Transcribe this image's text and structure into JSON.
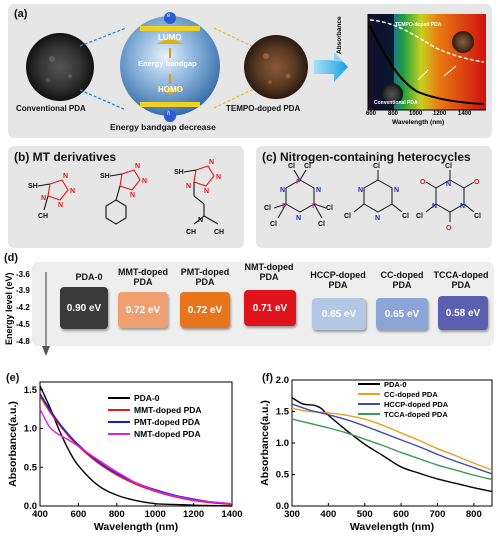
{
  "panel_a": {
    "label": "(a)",
    "conventional": "Conventional PDA",
    "tempo": "TEMPO-doped PDA",
    "lumo": "LUMO",
    "homo": "HOMO",
    "gap": "Energy bandgap",
    "caption": "Energy bandgap decrease",
    "e_sym": "e",
    "h_sym": "h",
    "inset": {
      "ylabel": "Absorbance",
      "xlabel": "Wavelength (nm)",
      "ticks": [
        "600",
        "800",
        "1000",
        "1200",
        "1400"
      ],
      "tempo_label": "TEMPO-doped PDA",
      "conv_label": "Conventional PDA"
    }
  },
  "panel_b": {
    "label": "(b)",
    "title": "MT derivatives"
  },
  "panel_c": {
    "label": "(c)",
    "title": "Nitrogen-containing heterocycles"
  },
  "panel_d": {
    "label": "(d)",
    "ylabel": "Energy level (eV)",
    "yticks": [
      "-3.6",
      "-3.9",
      "-4.2",
      "-4.5",
      "-4.8"
    ],
    "colors": {
      "PDA-0": "#3a3a3a",
      "MMT-doped PDA": "#f0a070",
      "PMT-doped PDA": "#e8741c",
      "NMT-doped PDA": "#e0141c",
      "HCCP-doped PDA": "#b4c8e6",
      "CC-doped PDA": "#8ca4d8",
      "TCCA-doped PDA": "#5a5fb0"
    },
    "bandgaps": [
      {
        "name": "PDA-0",
        "value": "0.90 eV"
      },
      {
        "name": "MMT-doped PDA",
        "value": "0.72 eV"
      },
      {
        "name": "PMT-doped PDA",
        "value": "0.72 eV"
      },
      {
        "name": "NMT-doped PDA",
        "value": "0.71 eV"
      },
      {
        "name": "HCCP-doped PDA",
        "value": "0.65 eV"
      },
      {
        "name": "CC-doped PDA",
        "value": "0.65 eV"
      },
      {
        "name": "TCCA-doped PDA",
        "value": "0.58 eV"
      }
    ]
  },
  "chart_data": [
    {
      "panel": "(e)",
      "type": "line",
      "xlabel": "Wavelength (nm)",
      "ylabel": "Absorbance(a.u.)",
      "xlim": [
        400,
        1400
      ],
      "ylim": [
        0,
        1.6
      ],
      "xticks": [
        400,
        600,
        800,
        1000,
        1200,
        1400
      ],
      "yticks": [
        0.0,
        0.5,
        1.0,
        1.5
      ],
      "legend": "top-right",
      "series": [
        {
          "name": "PDA-0",
          "color": "#000000",
          "x": [
            400,
            450,
            500,
            550,
            600,
            700,
            800,
            900,
            1000,
            1100,
            1200,
            1300,
            1400
          ],
          "y": [
            1.55,
            1.28,
            0.98,
            0.72,
            0.52,
            0.27,
            0.14,
            0.07,
            0.03,
            0.02,
            0.01,
            0.005,
            0.0
          ]
        },
        {
          "name": "MMT-doped PDA",
          "color": "#e41a1c",
          "x": [
            400,
            450,
            500,
            550,
            600,
            700,
            800,
            900,
            1000,
            1100,
            1200,
            1300,
            1400
          ],
          "y": [
            1.42,
            1.22,
            1.05,
            0.9,
            0.77,
            0.56,
            0.4,
            0.28,
            0.19,
            0.12,
            0.07,
            0.04,
            0.02
          ]
        },
        {
          "name": "PMT-doped PDA",
          "color": "#1c1cd8",
          "x": [
            400,
            450,
            500,
            550,
            600,
            700,
            800,
            900,
            1000,
            1100,
            1200,
            1300,
            1400
          ],
          "y": [
            1.45,
            1.25,
            1.07,
            0.92,
            0.79,
            0.58,
            0.42,
            0.3,
            0.21,
            0.14,
            0.09,
            0.05,
            0.03
          ]
        },
        {
          "name": "NMT-doped PDA",
          "color": "#e020e0",
          "x": [
            400,
            450,
            500,
            550,
            600,
            700,
            800,
            900,
            1000,
            1100,
            1200,
            1300,
            1400
          ],
          "y": [
            1.25,
            1.02,
            0.92,
            0.85,
            0.77,
            0.6,
            0.44,
            0.3,
            0.2,
            0.13,
            0.08,
            0.05,
            0.03
          ]
        }
      ]
    },
    {
      "panel": "(f)",
      "type": "line",
      "xlabel": "Wavelength (nm)",
      "ylabel": "Absorbance(a.u.)",
      "xlim": [
        300,
        850
      ],
      "ylim": [
        0,
        2.0
      ],
      "xticks": [
        300,
        400,
        500,
        600,
        700,
        800
      ],
      "yticks": [
        0.0,
        0.5,
        1.0,
        1.5,
        2.0
      ],
      "legend": "top-right",
      "series": [
        {
          "name": "PDA-0",
          "color": "#000000",
          "x": [
            300,
            330,
            360,
            380,
            400,
            450,
            500,
            550,
            600,
            650,
            700,
            750,
            800,
            850
          ],
          "y": [
            1.72,
            1.62,
            1.6,
            1.55,
            1.44,
            1.2,
            0.98,
            0.8,
            0.62,
            0.52,
            0.43,
            0.36,
            0.29,
            0.23
          ]
        },
        {
          "name": "CC-doped PDA",
          "color": "#e8a020",
          "x": [
            300,
            350,
            400,
            450,
            500,
            550,
            600,
            650,
            700,
            750,
            800,
            850
          ],
          "y": [
            1.55,
            1.5,
            1.48,
            1.44,
            1.38,
            1.28,
            1.16,
            1.04,
            0.91,
            0.8,
            0.68,
            0.57
          ]
        },
        {
          "name": "HCCP-doped PDA",
          "color": "#3a4ab8",
          "x": [
            300,
            350,
            400,
            450,
            500,
            550,
            600,
            650,
            700,
            750,
            800,
            850
          ],
          "y": [
            1.62,
            1.52,
            1.45,
            1.37,
            1.27,
            1.16,
            1.05,
            0.94,
            0.82,
            0.71,
            0.61,
            0.51
          ]
        },
        {
          "name": "TCCA-doped PDA",
          "color": "#3a9a5a",
          "x": [
            300,
            350,
            400,
            450,
            500,
            550,
            600,
            650,
            700,
            750,
            800,
            850
          ],
          "y": [
            1.38,
            1.31,
            1.24,
            1.16,
            1.06,
            0.96,
            0.85,
            0.75,
            0.65,
            0.57,
            0.49,
            0.42
          ]
        }
      ]
    }
  ]
}
